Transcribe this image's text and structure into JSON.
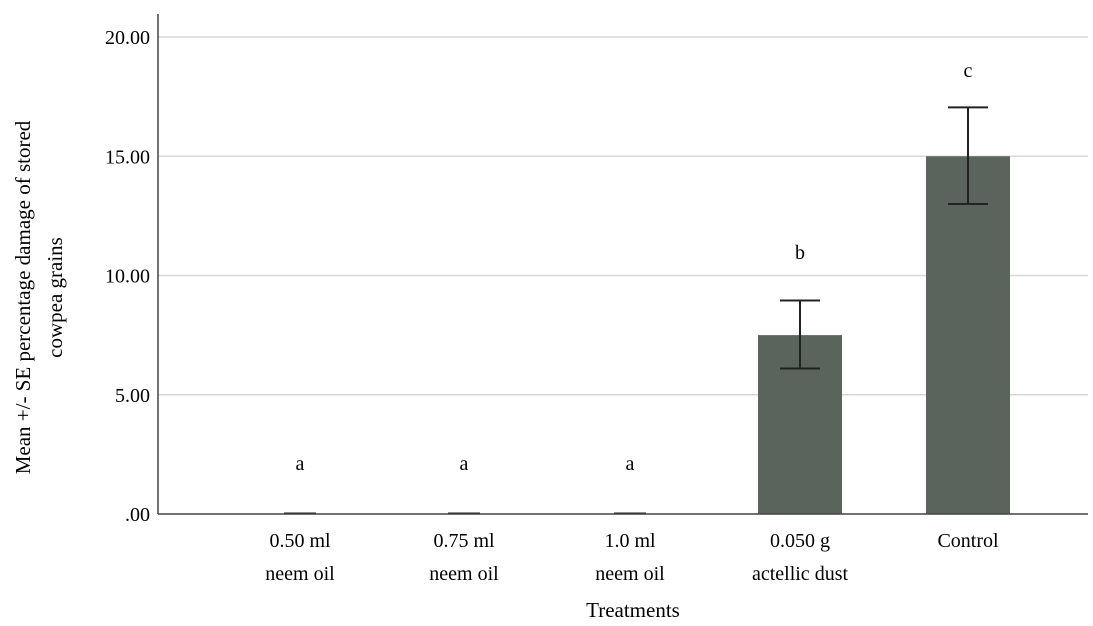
{
  "chart_data": {
    "type": "bar",
    "title": "",
    "xlabel": "Treatments",
    "ylabel_lines": [
      "Mean +/- SE percentage damage of stored",
      "cowpea  grains"
    ],
    "ylim": [
      0,
      20
    ],
    "yticks": [
      0,
      5,
      10,
      15,
      20
    ],
    "ytick_labels": [
      ".00",
      "5.00",
      "10.00",
      "15.00",
      "20.00"
    ],
    "grid": true,
    "categories": [
      [
        "0.50 ml",
        "neem oil"
      ],
      [
        "0.75 ml",
        "neem oil"
      ],
      [
        "1.0 ml",
        "neem oil"
      ],
      [
        "0.050 g",
        "actellic dust"
      ],
      [
        "Control"
      ]
    ],
    "values": [
      0,
      0,
      0,
      7.5,
      15.0
    ],
    "error_low": [
      0,
      0,
      0,
      6.1,
      13.0
    ],
    "error_high": [
      0,
      0,
      0,
      8.95,
      17.05
    ],
    "significance": [
      "a",
      "a",
      "a",
      "b",
      "c"
    ],
    "bar_color": "#5a645c",
    "grid_color": "#d8d8d8"
  }
}
